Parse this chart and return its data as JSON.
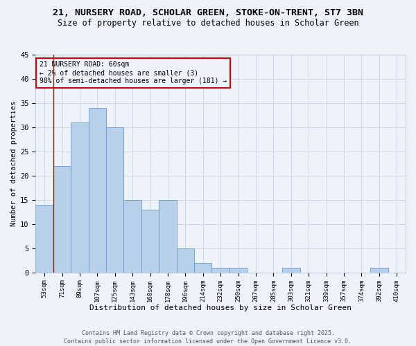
{
  "title": "21, NURSERY ROAD, SCHOLAR GREEN, STOKE-ON-TRENT, ST7 3BN",
  "subtitle": "Size of property relative to detached houses in Scholar Green",
  "xlabel": "Distribution of detached houses by size in Scholar Green",
  "ylabel": "Number of detached properties",
  "bin_labels": [
    "53sqm",
    "71sqm",
    "89sqm",
    "107sqm",
    "125sqm",
    "143sqm",
    "160sqm",
    "178sqm",
    "196sqm",
    "214sqm",
    "232sqm",
    "250sqm",
    "267sqm",
    "285sqm",
    "303sqm",
    "321sqm",
    "339sqm",
    "357sqm",
    "374sqm",
    "392sqm",
    "410sqm"
  ],
  "bar_values": [
    14,
    22,
    31,
    34,
    30,
    15,
    13,
    15,
    5,
    2,
    1,
    1,
    0,
    0,
    1,
    0,
    0,
    0,
    0,
    1,
    0
  ],
  "bar_color": "#b8d0ea",
  "bar_edge_color": "#6699cc",
  "annotation_box_text": "21 NURSERY ROAD: 60sqm\n← 2% of detached houses are smaller (3)\n98% of semi-detached houses are larger (181) →",
  "annotation_color": "#cc0000",
  "vline_x": 0.5,
  "vline_color": "#cc0000",
  "ylim": [
    0,
    45
  ],
  "yticks": [
    0,
    5,
    10,
    15,
    20,
    25,
    30,
    35,
    40,
    45
  ],
  "footer_text": "Contains HM Land Registry data © Crown copyright and database right 2025.\nContains public sector information licensed under the Open Government Licence v3.0.",
  "bg_color": "#eef2fb",
  "grid_color": "#c8d4e8",
  "title_fontsize": 9.5,
  "subtitle_fontsize": 8.5,
  "xlabel_fontsize": 8,
  "ylabel_fontsize": 7.5,
  "tick_fontsize": 6.5,
  "annotation_fontsize": 7,
  "footer_fontsize": 6
}
